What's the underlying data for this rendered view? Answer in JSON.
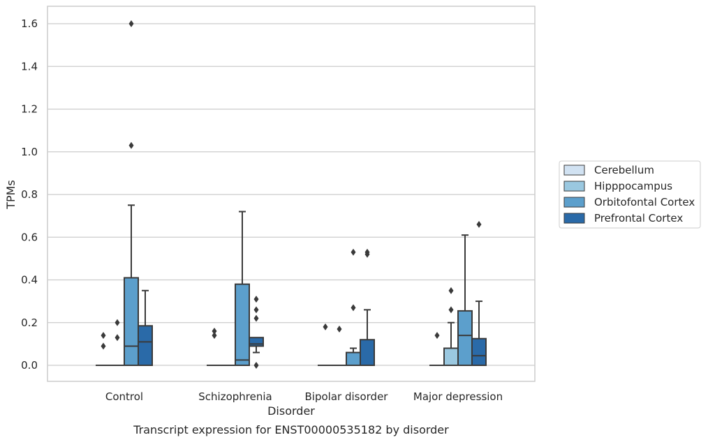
{
  "caption": "Transcript expression for ENST00000535182 by disorder",
  "chart_data": {
    "type": "box",
    "title": "",
    "xlabel": "Disorder",
    "ylabel": "TPMs",
    "ylim": [
      -0.08,
      1.68
    ],
    "yticks": [
      0.0,
      0.2,
      0.4,
      0.6,
      0.8,
      1.0,
      1.2,
      1.4,
      1.6
    ],
    "ytick_labels": [
      "0.0",
      "0.2",
      "0.4",
      "0.6",
      "0.8",
      "1.0",
      "1.2",
      "1.4",
      "1.6"
    ],
    "grid": true,
    "legend_placement": "right",
    "categories": [
      "Control",
      "Schizophrenia",
      "Bipolar disorder",
      "Major depression"
    ],
    "series": [
      {
        "name": "Cerebellum",
        "color": "#d1e2f2",
        "boxes": [
          {
            "q1": 0,
            "median": 0,
            "q3": 0,
            "whisker_low": 0,
            "whisker_high": 0,
            "outliers": [
              0.14,
              0.09
            ]
          },
          {
            "q1": 0,
            "median": 0,
            "q3": 0,
            "whisker_low": 0,
            "whisker_high": 0,
            "outliers": [
              0.16,
              0.14
            ]
          },
          {
            "q1": 0,
            "median": 0,
            "q3": 0,
            "whisker_low": 0,
            "whisker_high": 0,
            "outliers": [
              0.18
            ]
          },
          {
            "q1": 0,
            "median": 0,
            "q3": 0,
            "whisker_low": 0,
            "whisker_high": 0,
            "outliers": [
              0.14
            ]
          }
        ]
      },
      {
        "name": "Hipppocampus",
        "color": "#9ac8e0",
        "boxes": [
          {
            "q1": 0,
            "median": 0,
            "q3": 0,
            "whisker_low": 0,
            "whisker_high": 0,
            "outliers": [
              0.2,
              0.13
            ]
          },
          {
            "q1": 0,
            "median": 0,
            "q3": 0,
            "whisker_low": 0,
            "whisker_high": 0,
            "outliers": []
          },
          {
            "q1": 0,
            "median": 0,
            "q3": 0,
            "whisker_low": 0,
            "whisker_high": 0,
            "outliers": [
              0.17
            ]
          },
          {
            "q1": 0,
            "median": 0,
            "q3": 0.08,
            "whisker_low": 0,
            "whisker_high": 0.2,
            "outliers": [
              0.35,
              0.26
            ]
          }
        ]
      },
      {
        "name": "Orbitofontal Cortex",
        "color": "#5c9fcc",
        "boxes": [
          {
            "q1": 0,
            "median": 0.09,
            "q3": 0.41,
            "whisker_low": 0,
            "whisker_high": 0.75,
            "outliers": [
              1.6,
              1.03
            ]
          },
          {
            "q1": 0,
            "median": 0.025,
            "q3": 0.38,
            "whisker_low": 0,
            "whisker_high": 0.72,
            "outliers": []
          },
          {
            "q1": 0,
            "median": 0,
            "q3": 0.06,
            "whisker_low": 0,
            "whisker_high": 0.08,
            "outliers": [
              0.53,
              0.27
            ]
          },
          {
            "q1": 0,
            "median": 0.14,
            "q3": 0.255,
            "whisker_low": 0,
            "whisker_high": 0.61,
            "outliers": []
          }
        ]
      },
      {
        "name": "Prefrontal Cortex",
        "color": "#2a6aa8",
        "boxes": [
          {
            "q1": 0,
            "median": 0.11,
            "q3": 0.185,
            "whisker_low": 0,
            "whisker_high": 0.35,
            "outliers": []
          },
          {
            "q1": 0.09,
            "median": 0.1,
            "q3": 0.13,
            "whisker_low": 0.06,
            "whisker_high": 0.13,
            "outliers": [
              0.31,
              0.26,
              0.22,
              0
            ]
          },
          {
            "q1": 0,
            "median": 0,
            "q3": 0.12,
            "whisker_low": 0,
            "whisker_high": 0.26,
            "outliers": [
              0.53,
              0.52
            ]
          },
          {
            "q1": 0,
            "median": 0.045,
            "q3": 0.125,
            "whisker_low": 0,
            "whisker_high": 0.3,
            "outliers": [
              0.66
            ]
          }
        ]
      }
    ]
  }
}
